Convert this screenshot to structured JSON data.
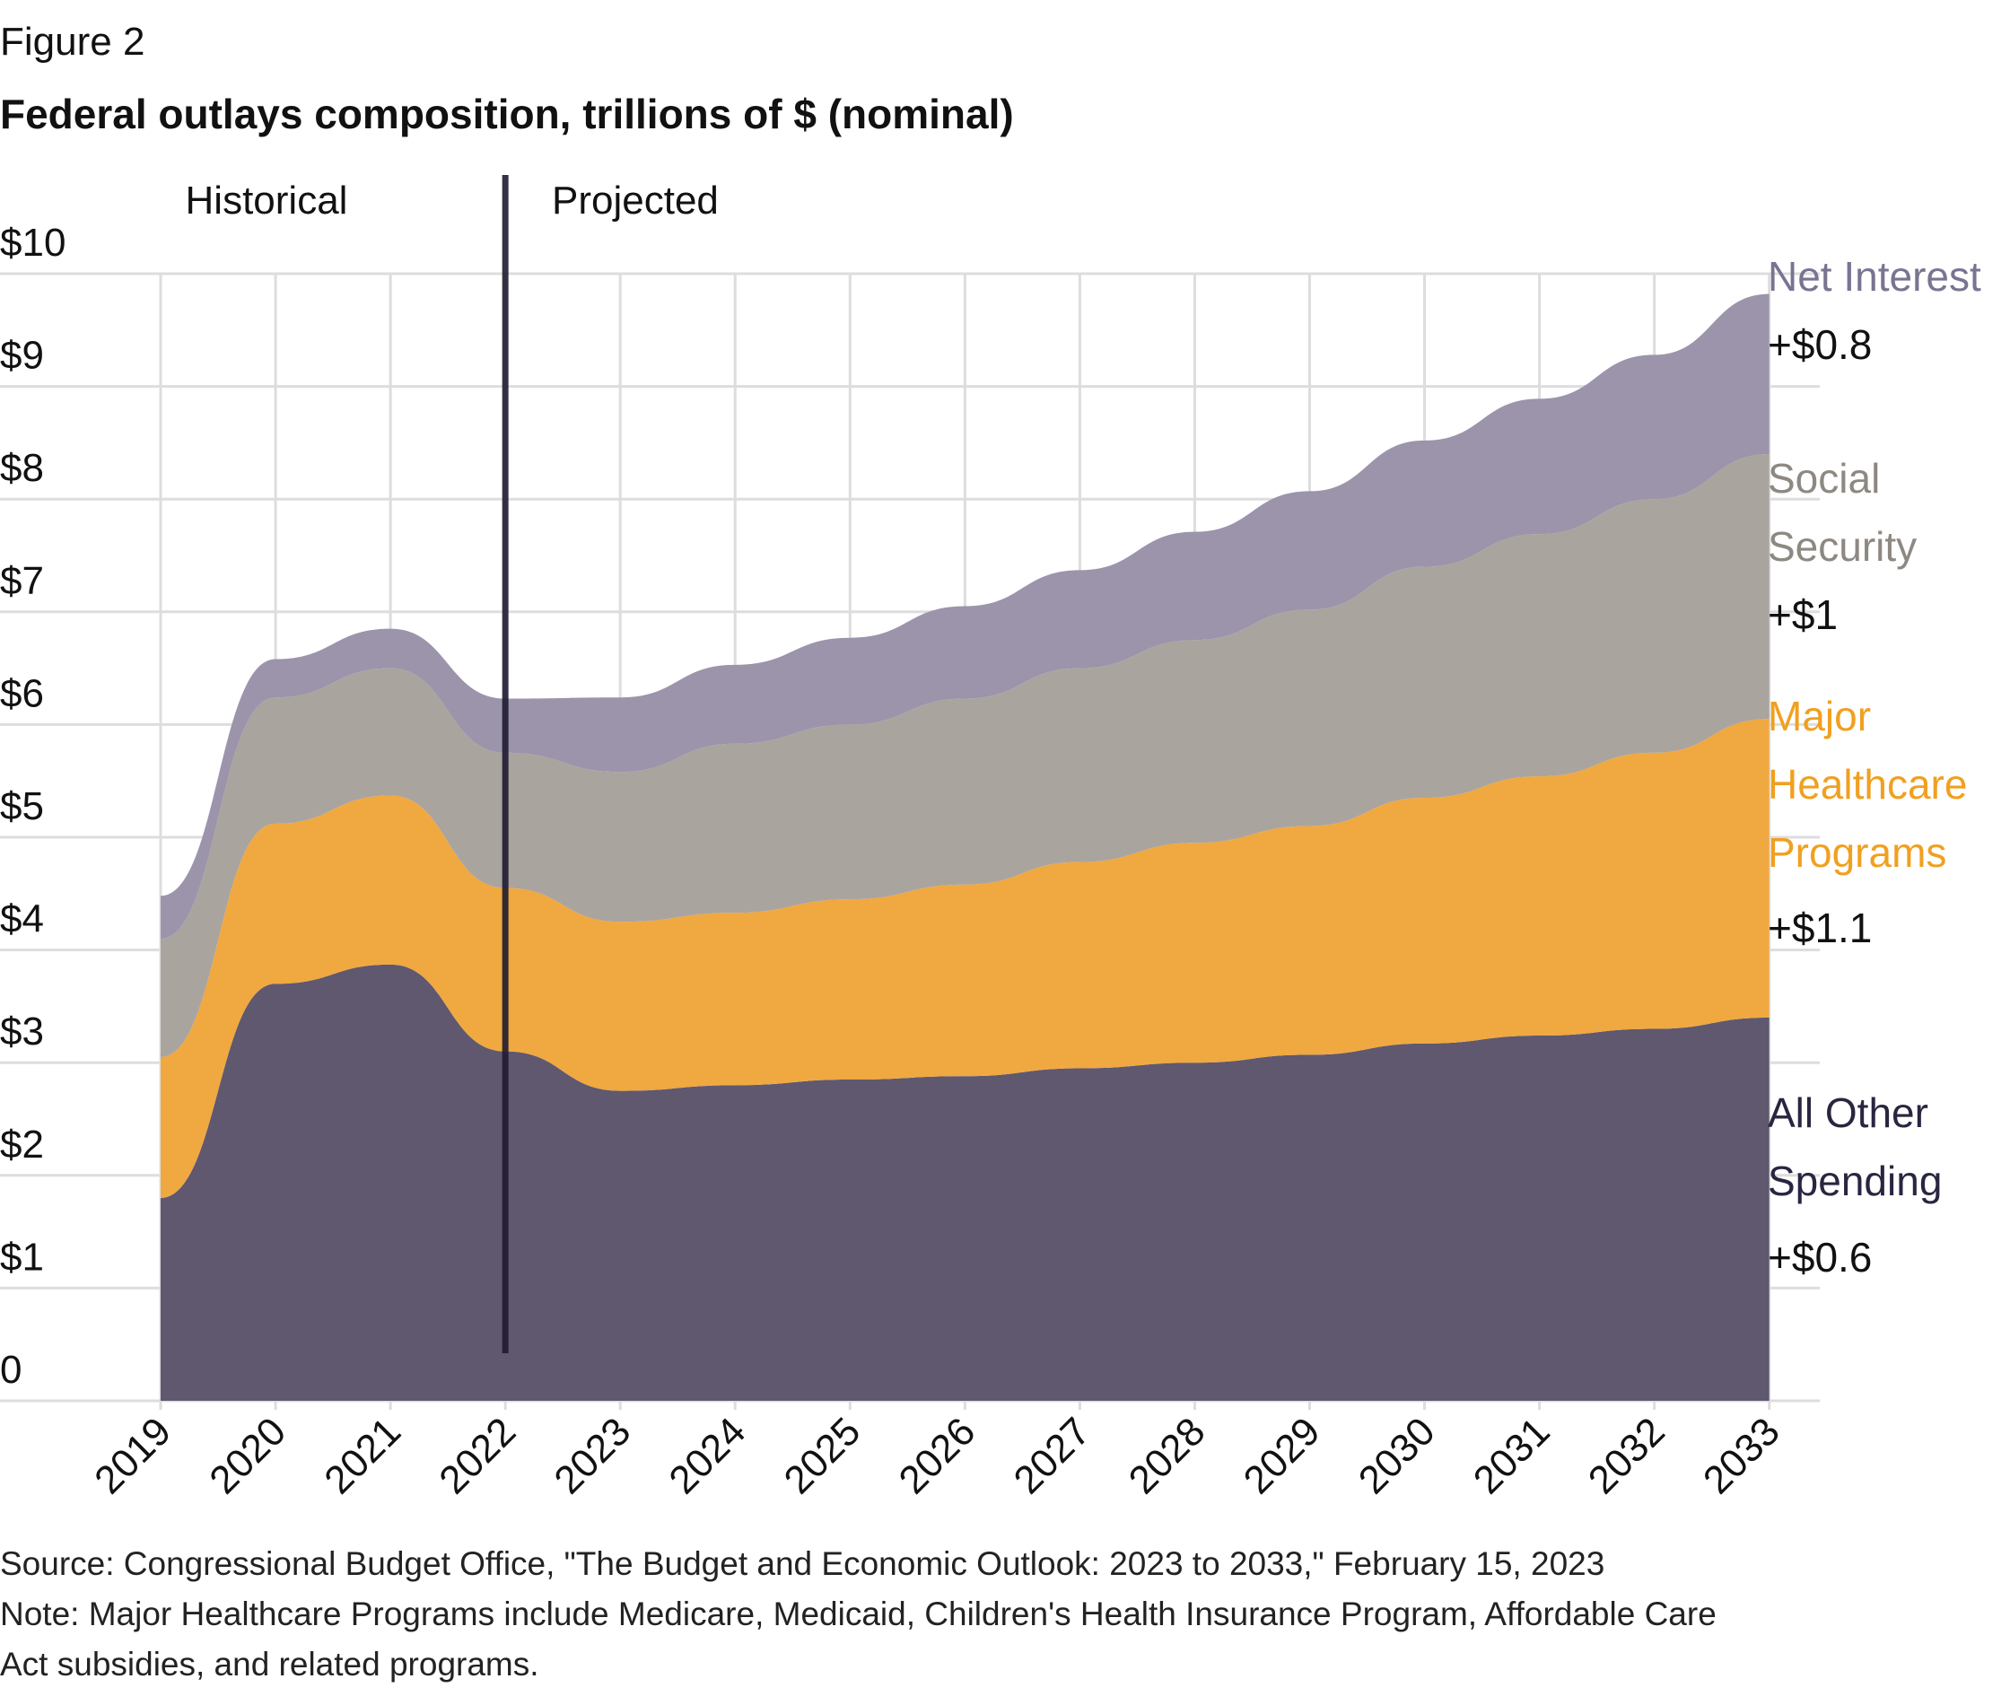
{
  "figure_label": "Figure 2",
  "title": "Federal outlays composition, trillions of $ (nominal)",
  "source": "Source: Congressional Budget Office, \"The Budget and Economic Outlook: 2023 to 2033,\" February 15, 2023",
  "note_line1": "Note: Major Healthcare Programs include Medicare, Medicaid, Children's Health Insurance Program, Affordable Care",
  "note_line2": "Act subsidies, and related programs.",
  "chart_data": {
    "type": "area",
    "stacked": true,
    "x": [
      "2019",
      "2020",
      "2021",
      "2022",
      "2023",
      "2024",
      "2025",
      "2026",
      "2027",
      "2028",
      "2029",
      "2030",
      "2031",
      "2032",
      "2033"
    ],
    "ylim": [
      0,
      10
    ],
    "y_ticks": [
      "0",
      "$1",
      "$2",
      "$3",
      "$4",
      "$5",
      "$6",
      "$7",
      "$8",
      "$9",
      "$10"
    ],
    "grid": true,
    "divider": {
      "at": "2022",
      "left_label": "Historical",
      "right_label": "Projected"
    },
    "series": [
      {
        "name": "All Other Spending",
        "change_label": "+$0.6",
        "color": "#5f586f",
        "values": [
          1.8,
          3.7,
          3.87,
          3.1,
          2.75,
          2.8,
          2.85,
          2.88,
          2.95,
          3.0,
          3.07,
          3.17,
          3.24,
          3.3,
          3.4
        ]
      },
      {
        "name": "Major Healthcare Programs",
        "change_label": "+$1.1",
        "color": "#f0a840",
        "values": [
          1.25,
          1.42,
          1.5,
          1.45,
          1.5,
          1.53,
          1.6,
          1.7,
          1.83,
          1.95,
          2.03,
          2.18,
          2.3,
          2.45,
          2.65
        ]
      },
      {
        "name": "Social Security",
        "change_label": "+$1",
        "color": "#aaa49f",
        "values": [
          1.05,
          1.12,
          1.13,
          1.2,
          1.33,
          1.5,
          1.55,
          1.65,
          1.72,
          1.8,
          1.92,
          2.05,
          2.15,
          2.25,
          2.35
        ]
      },
      {
        "name": "Net Interest",
        "change_label": "+$0.8",
        "color": "#9b94ab",
        "values": [
          0.38,
          0.34,
          0.35,
          0.48,
          0.66,
          0.7,
          0.77,
          0.82,
          0.87,
          0.96,
          1.05,
          1.12,
          1.2,
          1.28,
          1.42
        ]
      }
    ],
    "label_colors": {
      "Net Interest": "#7a7391",
      "Social Security": "#8e8882",
      "Major Healthcare Programs": "#f0a020",
      "All Other Spending": "#2a2540"
    },
    "divider_color": "#1f1b30",
    "grid_color": "#dddddd"
  }
}
